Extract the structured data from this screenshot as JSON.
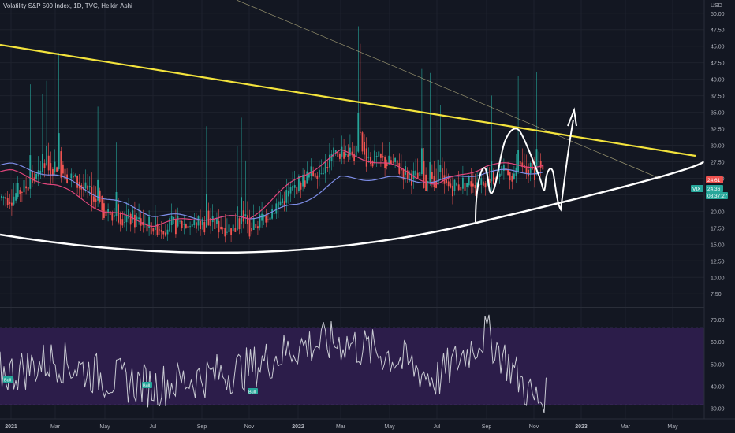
{
  "header": {
    "title": "Volatility S&P 500 Index, 1D, TVC, Heikin Ashi"
  },
  "price_axis": {
    "currency": "USD",
    "ticks": [
      "50.00",
      "47.50",
      "45.00",
      "42.50",
      "40.00",
      "37.50",
      "35.00",
      "32.50",
      "30.00",
      "27.50",
      "25.00",
      "22.50",
      "20.00",
      "17.50",
      "15.00",
      "12.50",
      "10.00",
      "7.50"
    ],
    "labels": [
      {
        "text": "VIX",
        "color": "#26a69a"
      },
      {
        "text": "24.61",
        "color": "#ef5350"
      },
      {
        "text": "24.36",
        "color": "#26a69a"
      },
      {
        "text": "08:37:27",
        "color": "#26a69a"
      }
    ]
  },
  "rsi_axis": {
    "ticks": [
      "70.00",
      "60.00",
      "50.00",
      "40.00",
      "30.00"
    ]
  },
  "time_axis": {
    "labels": [
      "2021",
      "Mar",
      "May",
      "Jul",
      "Sep",
      "Nov",
      "2022",
      "Mar",
      "May",
      "Jul",
      "Sep",
      "Nov",
      "2023",
      "Mar",
      "May"
    ]
  },
  "signals": [
    "Bull",
    "Bull",
    "Bull"
  ],
  "colors": {
    "background": "#131722",
    "grid": "#1e222d",
    "bull": "#26a69a",
    "bear": "#ef5350",
    "ma_fast": "#e0457b",
    "ma_slow": "#7e8ee8",
    "trendline": "#f3e33c",
    "rsi_line": "#c9cbd3",
    "rsi_band": "#2c1d4a"
  },
  "chart_data": [
    {
      "type": "line",
      "title": "Volatility S&P 500 Index, 1D, TVC, Heikin Ashi",
      "style": "heikin-ashi candlesticks",
      "xlabel": "",
      "ylabel": "USD",
      "ylim": [
        5.5,
        52
      ],
      "x": [
        "2021",
        "Mar",
        "May",
        "Jul",
        "Sep",
        "Nov",
        "2022",
        "Mar",
        "May",
        "Jul",
        "Sep",
        "Nov"
      ],
      "series": [
        {
          "role": "price",
          "values": [
            22,
            27,
            20,
            17.5,
            18,
            17,
            24,
            29,
            27,
            23,
            25,
            26
          ]
        },
        {
          "role": "ma_fast",
          "values": [
            26,
            24,
            20,
            18,
            19,
            19,
            25,
            29,
            27,
            24,
            27,
            27
          ]
        },
        {
          "role": "ma_slow",
          "values": [
            27,
            25.5,
            22,
            19.5,
            19,
            19,
            21,
            25,
            25,
            24.5,
            26,
            26
          ]
        }
      ],
      "last_price": 24.61,
      "close": 24.36
    },
    {
      "type": "line",
      "ylim": [
        26,
        75
      ],
      "x": [
        "2021",
        "Mar",
        "May",
        "Jul",
        "Sep",
        "Nov",
        "2022",
        "Mar",
        "May",
        "Jul",
        "Sep",
        "Nov"
      ],
      "series": [
        {
          "role": "rsi",
          "values": [
            46,
            52,
            44,
            40,
            44,
            48,
            58,
            60,
            54,
            43,
            64,
            34
          ]
        }
      ],
      "band": [
        30,
        70
      ]
    }
  ]
}
